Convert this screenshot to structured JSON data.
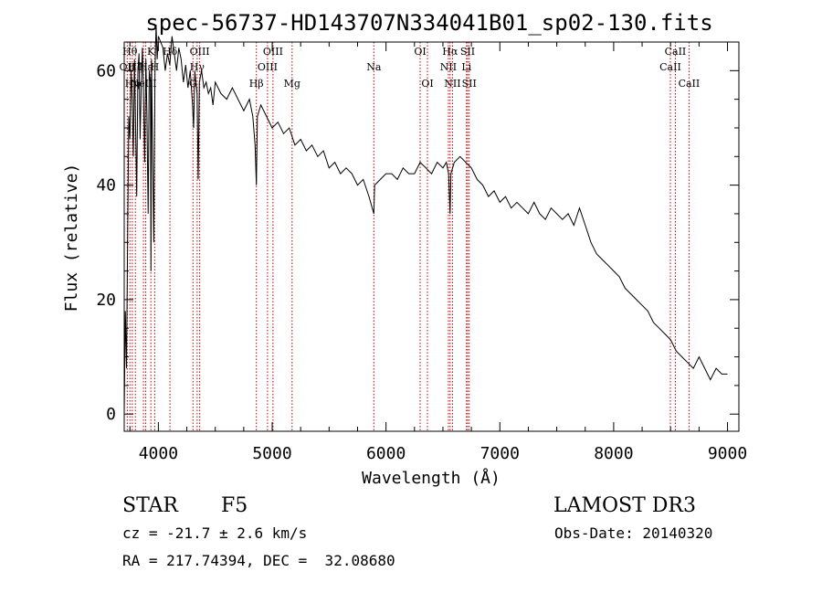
{
  "chart_data": {
    "type": "line",
    "title": "spec-56737-HD143707N334041B01_sp02-130.fits",
    "xlabel": "Wavelength (Å)",
    "ylabel": "Flux (relative)",
    "xlim": [
      3700,
      9100
    ],
    "ylim": [
      -3,
      65
    ],
    "xticks": [
      4000,
      5000,
      6000,
      7000,
      8000,
      9000
    ],
    "xtick_labels": [
      "4000",
      "5000",
      "6000",
      "7000",
      "8000",
      "9000"
    ],
    "yticks": [
      0,
      20,
      40,
      60
    ],
    "ytick_labels": [
      "0",
      "20",
      "40",
      "60"
    ],
    "grid": false,
    "series": [
      {
        "name": "flux",
        "x": [
          3700,
          3710,
          3720,
          3730,
          3740,
          3750,
          3760,
          3770,
          3780,
          3790,
          3800,
          3810,
          3820,
          3830,
          3840,
          3850,
          3860,
          3870,
          3880,
          3890,
          3900,
          3910,
          3920,
          3930,
          3935,
          3940,
          3950,
          3960,
          3970,
          3980,
          3990,
          4000,
          4020,
          4040,
          4060,
          4080,
          4100,
          4120,
          4140,
          4160,
          4180,
          4200,
          4220,
          4240,
          4260,
          4280,
          4300,
          4310,
          4320,
          4340,
          4350,
          4360,
          4380,
          4400,
          4420,
          4440,
          4460,
          4480,
          4500,
          4550,
          4600,
          4650,
          4700,
          4750,
          4800,
          4830,
          4850,
          4861,
          4870,
          4900,
          4950,
          5000,
          5050,
          5100,
          5150,
          5200,
          5250,
          5300,
          5350,
          5400,
          5450,
          5500,
          5550,
          5600,
          5650,
          5700,
          5750,
          5800,
          5850,
          5893,
          5900,
          5950,
          6000,
          6050,
          6100,
          6150,
          6200,
          6250,
          6300,
          6350,
          6400,
          6450,
          6500,
          6530,
          6550,
          6563,
          6570,
          6600,
          6650,
          6700,
          6750,
          6800,
          6850,
          6900,
          6950,
          7000,
          7050,
          7100,
          7150,
          7200,
          7250,
          7300,
          7350,
          7400,
          7450,
          7500,
          7550,
          7600,
          7650,
          7700,
          7750,
          7800,
          7850,
          7900,
          7950,
          8000,
          8050,
          8100,
          8150,
          8200,
          8250,
          8300,
          8350,
          8400,
          8450,
          8500,
          8550,
          8600,
          8650,
          8700,
          8750,
          8800,
          8850,
          8900,
          8950,
          9000
        ],
        "y": [
          0,
          18,
          8,
          30,
          52,
          48,
          60,
          55,
          45,
          62,
          50,
          38,
          60,
          63,
          48,
          58,
          64,
          55,
          44,
          62,
          52,
          35,
          60,
          58,
          25,
          62,
          44,
          30,
          60,
          68,
          62,
          66,
          65,
          64,
          60,
          63,
          61,
          66,
          63,
          60,
          64,
          62,
          58,
          61,
          57,
          60,
          54,
          50,
          60,
          56,
          41,
          58,
          60,
          57,
          58,
          56,
          57,
          54,
          58,
          56,
          55,
          57,
          55,
          53,
          55,
          52,
          47,
          40,
          52,
          54,
          52,
          50,
          51,
          49,
          50,
          47,
          48,
          46,
          47,
          45,
          46,
          43,
          44,
          42,
          43,
          42,
          40,
          41,
          38,
          35,
          40,
          41,
          42,
          42,
          41,
          43,
          42,
          42,
          44,
          43,
          42,
          44,
          43,
          44,
          42,
          35,
          42,
          44,
          45,
          44,
          43,
          41,
          40,
          38,
          39,
          37,
          38,
          36,
          37,
          36,
          35,
          37,
          35,
          34,
          36,
          35,
          34,
          35,
          33,
          36,
          33,
          30,
          28,
          27,
          26,
          25,
          24,
          22,
          21,
          20,
          19,
          18,
          16,
          15,
          14,
          13,
          11,
          10,
          9,
          8,
          10,
          8,
          6,
          8,
          7,
          7
        ]
      }
    ],
    "line_markers": [
      {
        "w": 3727,
        "label": "OII",
        "row": 1
      },
      {
        "w": 3750,
        "label": "Hθ",
        "row": 0
      },
      {
        "w": 3771,
        "label": "Hη",
        "row": 2
      },
      {
        "w": 3798,
        "label": "Hζ",
        "row": 1
      },
      {
        "w": 3869,
        "label": "NeIII",
        "row": 2
      },
      {
        "w": 3889,
        "label": "Hε",
        "row": 1
      },
      {
        "w": 3934,
        "label": "K",
        "row": 0
      },
      {
        "w": 3968,
        "label": "H",
        "row": 1
      },
      {
        "w": 4102,
        "label": "Hδ",
        "row": 0
      },
      {
        "w": 4304,
        "label": "G",
        "row": 2
      },
      {
        "w": 4341,
        "label": "Hγ",
        "row": 1
      },
      {
        "w": 4363,
        "label": "OIII",
        "row": 0
      },
      {
        "w": 4861,
        "label": "Hβ",
        "row": 2
      },
      {
        "w": 4959,
        "label": "OIII",
        "row": 1
      },
      {
        "w": 5007,
        "label": "OIII",
        "row": 0
      },
      {
        "w": 5175,
        "label": "Mg",
        "row": 2
      },
      {
        "w": 5893,
        "label": "Na",
        "row": 1
      },
      {
        "w": 6300,
        "label": "OI",
        "row": 0
      },
      {
        "w": 6364,
        "label": "OI",
        "row": 2
      },
      {
        "w": 6548,
        "label": "NII",
        "row": 1
      },
      {
        "w": 6563,
        "label": "Hα",
        "row": 0
      },
      {
        "w": 6584,
        "label": "NII",
        "row": 2
      },
      {
        "w": 6707,
        "label": "Li",
        "row": 1
      },
      {
        "w": 6717,
        "label": "SII",
        "row": 0
      },
      {
        "w": 6731,
        "label": "SII",
        "row": 2
      },
      {
        "w": 8498,
        "label": "CaII",
        "row": 1
      },
      {
        "w": 8542,
        "label": "CaII",
        "row": 0
      },
      {
        "w": 8662,
        "label": "CaII",
        "row": 2
      }
    ]
  },
  "info": {
    "object_class": "STAR",
    "subclass": "F5",
    "survey": "LAMOST DR3",
    "redshift": "cz = -21.7 ± 2.6 km/s",
    "obs_date": "Obs-Date: 20140320",
    "coords": "RA = 217.74394, DEC =  32.08680"
  },
  "colors": {
    "marker_line": "#c00000",
    "spectrum": "#000000",
    "text": "#000000"
  }
}
